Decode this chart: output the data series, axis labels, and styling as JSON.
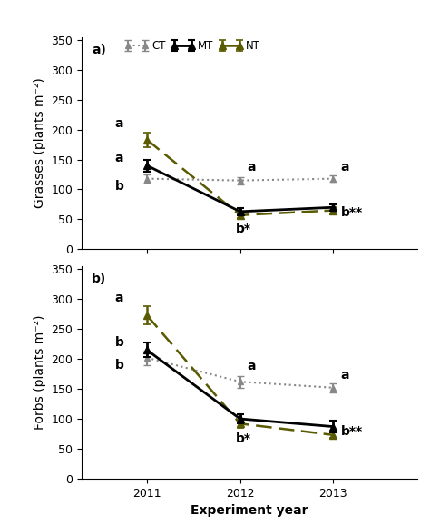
{
  "years": [
    2011,
    2012,
    2013
  ],
  "panel_a": {
    "label": "a)",
    "ylabel": "Grasses (plants m⁻²)",
    "CT": {
      "values": [
        118,
        115,
        118
      ],
      "errors": [
        7,
        6,
        5
      ]
    },
    "MT": {
      "values": [
        140,
        63,
        70
      ],
      "errors": [
        10,
        6,
        5
      ]
    },
    "NT": {
      "values": [
        183,
        57,
        65
      ],
      "errors": [
        12,
        5,
        5
      ]
    },
    "ann2011_nt": "a",
    "ann2011_mt": "a",
    "ann2011_ct": "b",
    "ann2012_ct": "a",
    "ann2012_mt": "b*",
    "ann2013_ct": "a",
    "ann2013_mt": "b**"
  },
  "panel_b": {
    "label": "b)",
    "ylabel": "Forbs (plants m⁻²)",
    "CT": {
      "values": [
        202,
        162,
        152
      ],
      "errors": [
        12,
        10,
        8
      ]
    },
    "MT": {
      "values": [
        215,
        100,
        87
      ],
      "errors": [
        12,
        8,
        10
      ]
    },
    "NT": {
      "values": [
        273,
        92,
        73
      ],
      "errors": [
        15,
        7,
        5
      ]
    },
    "ann2011_nt": "a",
    "ann2011_mt": "b",
    "ann2011_ct": "b",
    "ann2012_ct": "a",
    "ann2012_mt": "b*",
    "ann2013_ct": "a",
    "ann2013_mt": "b**"
  },
  "xlabel": "Experiment year",
  "CT_color": "#888888",
  "MT_color": "#000000",
  "NT_color": "#5a5a00",
  "ylim": [
    0,
    355
  ],
  "yticks": [
    0,
    50,
    100,
    150,
    200,
    250,
    300,
    350
  ],
  "legend_labels": [
    "CT",
    "MT",
    "NT"
  ],
  "label_fontsize": 10,
  "tick_fontsize": 9,
  "annot_fontsize": 10
}
